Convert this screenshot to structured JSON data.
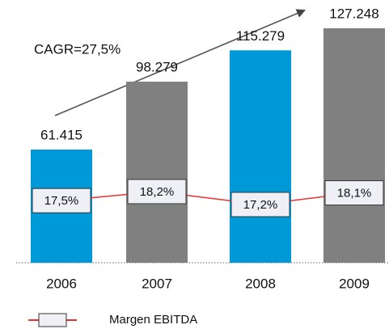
{
  "chart_data": {
    "type": "bar",
    "annotation": "CAGR=27,5%",
    "categories": [
      "2006",
      "2007",
      "2008",
      "2009"
    ],
    "values": [
      61415,
      98279,
      115279,
      127248
    ],
    "value_labels": [
      "61.415",
      "98.279",
      "115.279",
      "127.248"
    ],
    "colors": [
      "#0099d8",
      "#808080",
      "#0099d8",
      "#808080"
    ],
    "series": [
      {
        "name": "Margen EBITDA",
        "color": "#e8312f",
        "values": [
          17.5,
          18.2,
          17.2,
          18.1
        ],
        "value_labels": [
          "17,5%",
          "18,2%",
          "17,2%",
          "18,1%"
        ]
      }
    ]
  }
}
